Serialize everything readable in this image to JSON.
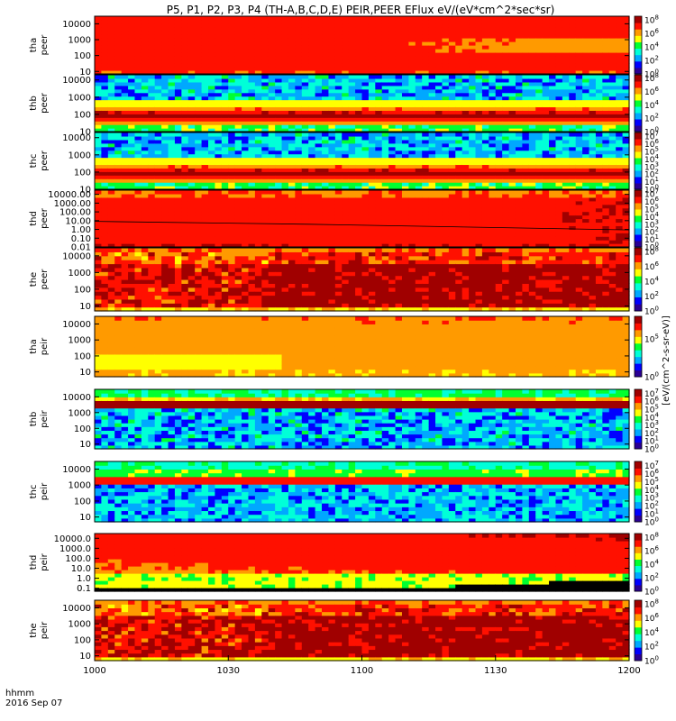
{
  "chart_data": {
    "type": "heatmap",
    "title": "P5, P1, P2, P3, P4 (TH-A,B,C,D,E) PEIR,PEER EFlux eV/(eV*cm^2*sec*sr)",
    "xlabel": "hhmm",
    "date_label": "2016 Sep 07",
    "x_range": [
      1000,
      1200
    ],
    "x_tick_values": [
      1000,
      1030,
      1100,
      1130,
      1200
    ],
    "x_tick_labels": [
      "1000",
      "1030",
      "1100",
      "1130",
      "1200"
    ],
    "colorbar_label": "[eV/(cm^2-s-sr-eV)]",
    "colormap": [
      "#2a0094",
      "#0000ff",
      "#00a8ff",
      "#00ffd8",
      "#00ff30",
      "#ffff00",
      "#ff9a00",
      "#ff1000",
      "#a00000"
    ],
    "panels": [
      {
        "name": "tha-peer",
        "ylabel1": "tha",
        "ylabel2": "peer",
        "ytick_values": [
          10,
          100,
          1000,
          10000
        ],
        "ytick_labels": [
          "10",
          "100",
          "1000",
          "10000"
        ],
        "ylim": [
          7,
          30000
        ],
        "cbar_ticks": [
          0,
          2,
          4,
          6,
          8
        ],
        "pattern": "broad_orange"
      },
      {
        "name": "thb-peer",
        "ylabel1": "thb",
        "ylabel2": "peer",
        "ytick_values": [
          10,
          100,
          1000,
          10000
        ],
        "ytick_labels": [
          "10",
          "100",
          "1000",
          "10000"
        ],
        "ylim": [
          10,
          20000
        ],
        "cbar_ticks": [
          0,
          2,
          4,
          6,
          8
        ],
        "pattern": "band_low_noise_high"
      },
      {
        "name": "thc-peer",
        "ylabel1": "thc",
        "ylabel2": "peer",
        "ytick_values": [
          10,
          100,
          1000,
          10000
        ],
        "ytick_labels": [
          "10",
          "100",
          "1000",
          "10000"
        ],
        "ylim": [
          10,
          20000
        ],
        "cbar_ticks": [
          0,
          1,
          2,
          3,
          4,
          5,
          6,
          7
        ],
        "pattern": "band_low_noise_high"
      },
      {
        "name": "thd-peer",
        "ylabel1": "thd",
        "ylabel2": "peer",
        "ytick_values": [
          0.01,
          0.1,
          1,
          10,
          100,
          1000,
          10000
        ],
        "ytick_labels": [
          "0.01",
          "0.10",
          "1.00",
          "10.00",
          "100.00",
          "1000.00",
          "10000.00"
        ],
        "ylim": [
          0.01,
          30000
        ],
        "cbar_ticks": [
          0,
          1,
          2,
          3,
          4,
          5,
          6,
          7
        ],
        "pattern": "broad_red_line"
      },
      {
        "name": "the-peer",
        "ylabel1": "the",
        "ylabel2": "peer",
        "ytick_values": [
          10,
          100,
          1000,
          10000
        ],
        "ytick_labels": [
          "10",
          "100",
          "1000",
          "10000"
        ],
        "ylim": [
          5,
          30000
        ],
        "cbar_ticks": [
          0,
          2,
          4,
          6,
          8
        ],
        "pattern": "streaky_red"
      },
      {
        "name": "tha-peir",
        "ylabel1": "tha",
        "ylabel2": "peir",
        "ytick_values": [
          10,
          100,
          1000,
          10000
        ],
        "ytick_labels": [
          "10",
          "100",
          "1000",
          "10000"
        ],
        "ylim": [
          5,
          30000
        ],
        "cbar_ticks": [
          0,
          5
        ],
        "pattern": "yellow_green"
      },
      {
        "name": "thb-peir",
        "ylabel1": "thb",
        "ylabel2": "peir",
        "ytick_values": [
          10,
          100,
          1000,
          10000
        ],
        "ytick_labels": [
          "10",
          "100",
          "1000",
          "10000"
        ],
        "ylim": [
          5,
          30000
        ],
        "cbar_ticks": [
          0,
          1,
          2,
          3,
          4,
          5,
          6,
          7
        ],
        "pattern": "noise_red_band"
      },
      {
        "name": "thc-peir",
        "ylabel1": "thc",
        "ylabel2": "peir",
        "ytick_values": [
          10,
          100,
          1000,
          10000
        ],
        "ytick_labels": [
          "10",
          "100",
          "1000",
          "10000"
        ],
        "ylim": [
          5,
          30000
        ],
        "cbar_ticks": [
          0,
          1,
          2,
          3,
          4,
          5,
          6,
          7
        ],
        "pattern": "noise_orange_band"
      },
      {
        "name": "thd-peir",
        "ylabel1": "thd",
        "ylabel2": "peir",
        "ytick_values": [
          0.1,
          1,
          10,
          100,
          1000,
          10000
        ],
        "ytick_labels": [
          "0.1",
          "1.0",
          "10.0",
          "100.0",
          "1000.0",
          "10000.0"
        ],
        "ylim": [
          0.05,
          30000
        ],
        "cbar_ticks": [
          0,
          2,
          4,
          6,
          8
        ],
        "pattern": "orange_black_bottom"
      },
      {
        "name": "the-peir",
        "ylabel1": "the",
        "ylabel2": "peir",
        "ytick_values": [
          10,
          100,
          1000,
          10000
        ],
        "ytick_labels": [
          "10",
          "100",
          "1000",
          "10000"
        ],
        "ylim": [
          5,
          30000
        ],
        "cbar_ticks": [
          0,
          2,
          4,
          6,
          8
        ],
        "pattern": "streaky_red"
      }
    ]
  }
}
